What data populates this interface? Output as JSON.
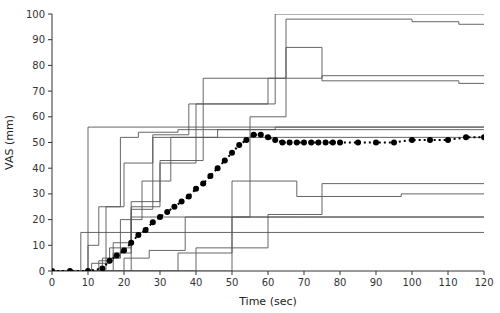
{
  "chart_data": {
    "type": "line",
    "xlabel": "Time (sec)",
    "ylabel": "VAS (mm)",
    "xlim": [
      0,
      120
    ],
    "ylim": [
      0,
      100
    ],
    "xticks": [
      0,
      10,
      20,
      30,
      40,
      50,
      60,
      70,
      80,
      90,
      100,
      110,
      120
    ],
    "yticks": [
      0,
      10,
      20,
      30,
      40,
      50,
      60,
      70,
      80,
      90,
      100
    ],
    "grid": false,
    "series": [
      {
        "x": [
          0,
          8,
          8,
          120
        ],
        "values": [
          0,
          0,
          15,
          15
        ],
        "color": "#555555",
        "line_style": "solid"
      },
      {
        "x": [
          0,
          10,
          10,
          11,
          11,
          120
        ],
        "values": [
          0,
          0,
          56,
          56,
          56,
          56
        ],
        "color": "#555555",
        "line_style": "solid"
      },
      {
        "x": [
          0,
          10,
          10,
          13,
          13,
          19,
          19,
          24,
          24,
          35,
          35,
          120
        ],
        "values": [
          0,
          0,
          10,
          10,
          25,
          25,
          52,
          52,
          54,
          54,
          55,
          55
        ],
        "color": "#555555",
        "line_style": "solid"
      },
      {
        "x": [
          0,
          11,
          11,
          16,
          16,
          22,
          22,
          30,
          30,
          120
        ],
        "values": [
          0,
          0,
          3,
          3,
          9,
          9,
          21,
          21,
          21,
          21
        ],
        "color": "#555555",
        "line_style": "solid"
      },
      {
        "x": [
          0,
          13,
          13,
          17,
          17,
          22,
          22,
          30,
          30,
          40,
          40,
          60,
          60,
          120
        ],
        "values": [
          0,
          0,
          4,
          4,
          7,
          7,
          25,
          25,
          42,
          42,
          52,
          52,
          52,
          52
        ],
        "color": "#555555",
        "line_style": "solid"
      },
      {
        "x": [
          0,
          14,
          14,
          19,
          19,
          25,
          25,
          33,
          33,
          46,
          46,
          62,
          62,
          120
        ],
        "values": [
          0,
          0,
          5,
          5,
          20,
          20,
          35,
          35,
          52,
          52,
          55,
          55,
          56,
          56
        ],
        "color": "#555555",
        "line_style": "solid"
      },
      {
        "x": [
          0,
          15,
          15,
          20,
          20,
          28,
          28,
          38,
          38,
          60,
          60,
          75,
          75,
          120
        ],
        "values": [
          0,
          0,
          25,
          25,
          42,
          42,
          53,
          53,
          65,
          65,
          75,
          75,
          76,
          76
        ],
        "color": "#555555",
        "line_style": "solid"
      },
      {
        "x": [
          0,
          17,
          17,
          22,
          22,
          30,
          30,
          42,
          42,
          65,
          65,
          75,
          75,
          113,
          113,
          120
        ],
        "values": [
          0,
          0,
          11,
          11,
          27,
          27,
          43,
          43,
          75,
          75,
          87,
          87,
          74,
          74,
          73,
          73
        ],
        "color": "#555555",
        "line_style": "solid"
      },
      {
        "x": [
          0,
          20,
          20,
          27,
          27,
          37,
          37,
          55,
          55,
          65,
          65,
          100,
          100,
          113,
          113,
          120
        ],
        "values": [
          0,
          0,
          5,
          5,
          8,
          8,
          21,
          21,
          60,
          60,
          98,
          98,
          97,
          97,
          96,
          96
        ],
        "color": "#555555",
        "line_style": "solid"
      },
      {
        "x": [
          0,
          22,
          22,
          28,
          28,
          40,
          40,
          62,
          62,
          100,
          100,
          120
        ],
        "values": [
          0,
          0,
          24,
          24,
          52,
          52,
          65,
          65,
          100,
          100,
          100,
          100
        ],
        "color": "#555555",
        "line_style": "solid"
      },
      {
        "x": [
          0,
          35,
          35,
          50,
          50,
          68,
          68,
          97,
          97,
          120
        ],
        "values": [
          0,
          0,
          7,
          7,
          35,
          35,
          29,
          29,
          30,
          30
        ],
        "color": "#555555",
        "line_style": "solid"
      },
      {
        "x": [
          0,
          40,
          40,
          60,
          60,
          75,
          75,
          95,
          95,
          120
        ],
        "values": [
          0,
          0,
          9,
          9,
          22,
          22,
          34,
          34,
          34,
          34
        ],
        "color": "#555555",
        "line_style": "solid"
      },
      {
        "x": [
          0,
          50,
          50,
          68,
          68,
          120
        ],
        "values": [
          0,
          0,
          21,
          21,
          21,
          21
        ],
        "color": "#555555",
        "line_style": "solid"
      },
      {
        "x": [
          0,
          5,
          10,
          14,
          16,
          18,
          20,
          22,
          24,
          26,
          28,
          30,
          32,
          34,
          36,
          38,
          40,
          42,
          44,
          46,
          48,
          50,
          52,
          54,
          56,
          58,
          60,
          62,
          64,
          66,
          68,
          70,
          72,
          74,
          76,
          78,
          80,
          85,
          90,
          95,
          100,
          105,
          110,
          115,
          120
        ],
        "values": [
          0,
          0,
          0,
          1,
          4,
          6,
          8,
          11,
          14,
          16,
          19,
          21,
          23,
          25,
          27,
          29,
          32,
          34,
          37,
          40,
          43,
          46,
          49,
          51,
          53,
          53,
          52,
          51,
          50,
          50,
          50,
          50,
          50,
          50,
          50,
          50,
          50,
          50,
          50,
          50,
          51,
          51,
          51,
          52,
          52
        ],
        "color": "#000000",
        "line_style": "dotted",
        "marker": "circle"
      }
    ]
  }
}
